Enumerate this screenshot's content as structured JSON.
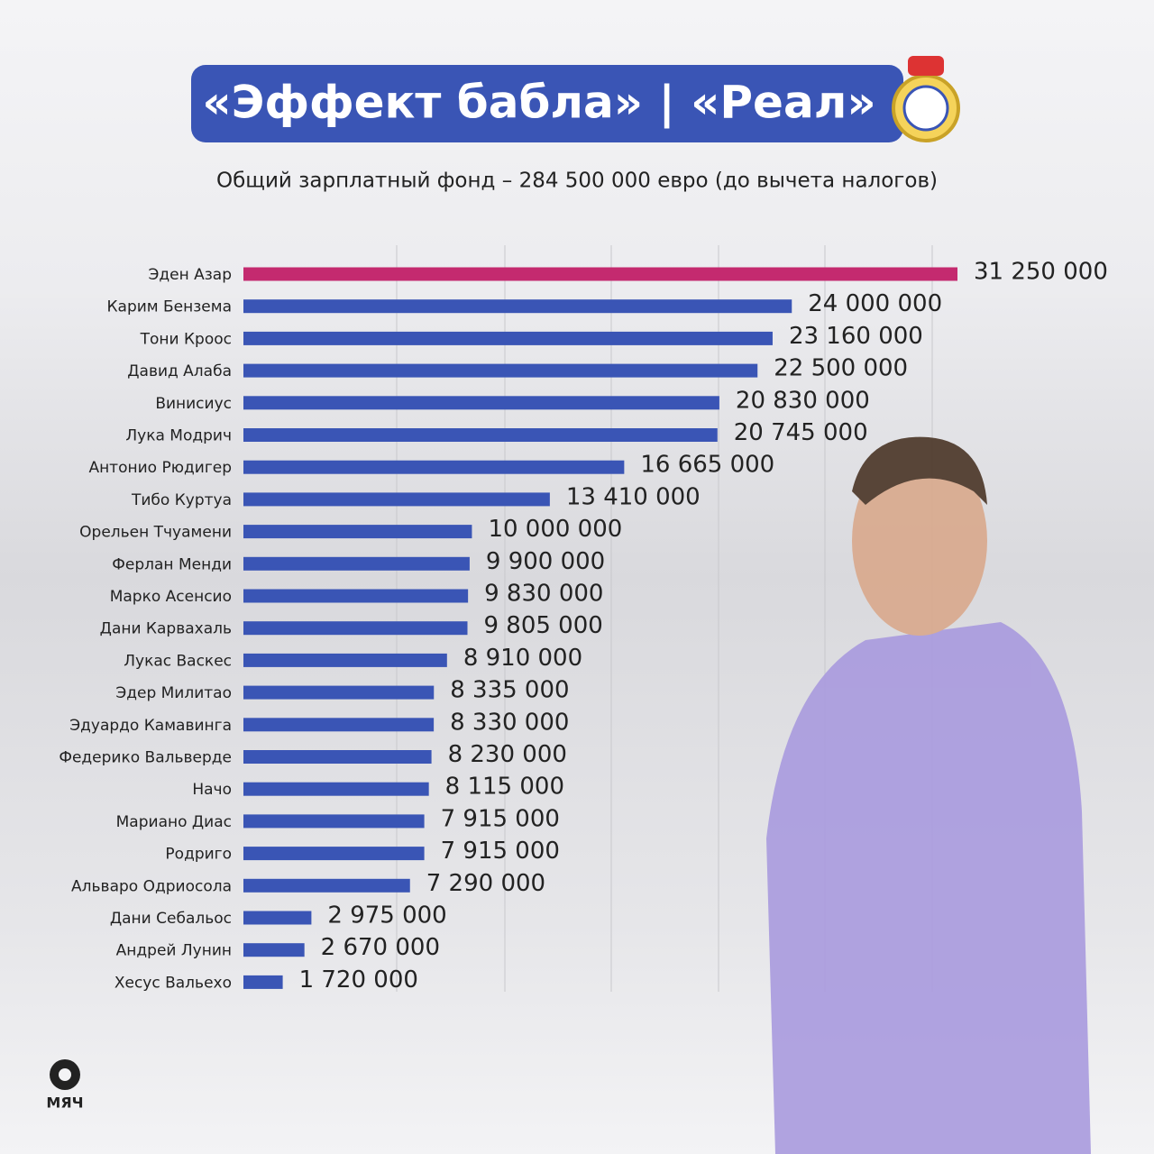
{
  "chart_data": {
    "type": "bar",
    "orientation": "horizontal",
    "title": "«Эффект бабла» | «Реал»",
    "subtitle": "Общий зарплатный фонд – 284 500 000 евро (до вычета налогов)",
    "categories": [
      "Эден Азар",
      "Карим Бензема",
      "Тони Кроос",
      "Давид Алаба",
      "Винисиус",
      "Лука Модрич",
      "Антонио Рюдигер",
      "Тибо Куртуа",
      "Орельен Тчуамени",
      "Ферлан Менди",
      "Марко Асенсио",
      "Дани Карвахаль",
      "Лукас Васкес",
      "Эдер Милитао",
      "Эдуардо Камавинга",
      "Федерико Вальверде",
      "Начо",
      "Мариано Диас",
      "Родриго",
      "Альваро Одриосола",
      "Дани Себальос",
      "Андрей Лунин",
      "Хесус Вальехо"
    ],
    "values": [
      31250000,
      24000000,
      23160000,
      22500000,
      20830000,
      20745000,
      16665000,
      13410000,
      10000000,
      9900000,
      9830000,
      9805000,
      8910000,
      8335000,
      8330000,
      8230000,
      8115000,
      7915000,
      7915000,
      7290000,
      2975000,
      2670000,
      1720000
    ],
    "value_labels": [
      "31 250 000",
      "24 000 000",
      "23 160 000",
      "22 500 000",
      "20 830 000",
      "20 745 000",
      "16 665 000",
      "13 410 000",
      "10 000 000",
      "9 900 000",
      "9 830 000",
      "9 805 000",
      "8 910 000",
      "8 335 000",
      "8 330 000",
      "8 230 000",
      "8 115 000",
      "7 915 000",
      "7 915 000",
      "7 290 000",
      "2 975 000",
      "2 670 000",
      "1 720 000"
    ],
    "colors": [
      "#c42a6f",
      "#3a55b5",
      "#3a55b5",
      "#3a55b5",
      "#3a55b5",
      "#3a55b5",
      "#3a55b5",
      "#3a55b5",
      "#3a55b5",
      "#3a55b5",
      "#3a55b5",
      "#3a55b5",
      "#3a55b5",
      "#3a55b5",
      "#3a55b5",
      "#3a55b5",
      "#3a55b5",
      "#3a55b5",
      "#3a55b5",
      "#3a55b5",
      "#3a55b5",
      "#3a55b5",
      "#3a55b5"
    ]
  },
  "brand": "МЯЧ"
}
